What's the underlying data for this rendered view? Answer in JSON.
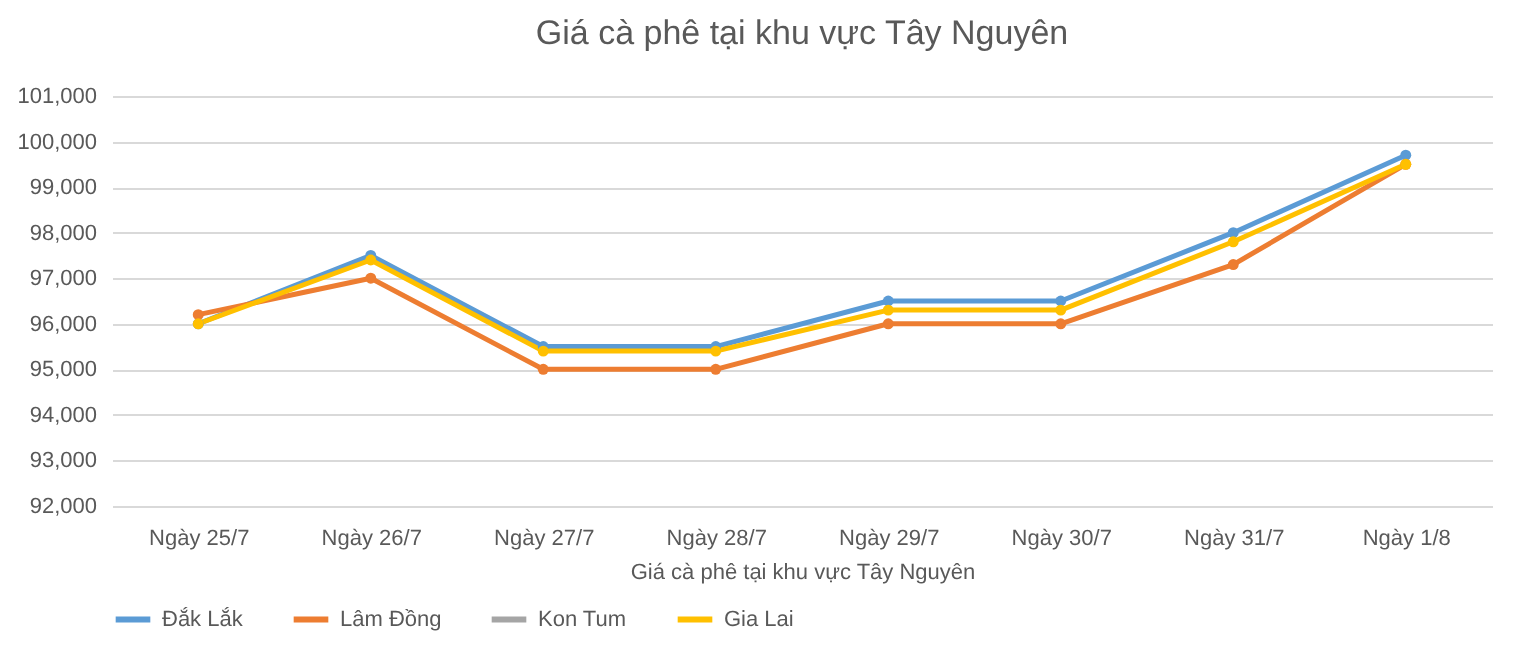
{
  "chart_data": {
    "type": "line",
    "title": "Giá cà phê tại khu vực Tây Nguyên",
    "xlabel": "Giá cà phê tại khu vực Tây Nguyên",
    "categories": [
      "Ngày 25/7",
      "Ngày 26/7",
      "Ngày 27/7",
      "Ngày 28/7",
      "Ngày 29/7",
      "Ngày 30/7",
      "Ngày 31/7",
      "Ngày 1/8"
    ],
    "series": [
      {
        "name": "Đắk Lắk",
        "color": "#5b9bd5",
        "values": [
          96000,
          97500,
          95500,
          95500,
          96500,
          96500,
          98000,
          99700
        ]
      },
      {
        "name": "Lâm Đồng",
        "color": "#ed7d31",
        "values": [
          96200,
          97000,
          95000,
          95000,
          96000,
          96000,
          97300,
          99500
        ]
      },
      {
        "name": "Kon Tum",
        "color": "#a5a5a5",
        "values": [
          null,
          null,
          null,
          null,
          null,
          null,
          null,
          null
        ]
      },
      {
        "name": "Gia Lai",
        "color": "#ffc000",
        "values": [
          96000,
          97400,
          95400,
          95400,
          96300,
          96300,
          97800,
          99500
        ]
      }
    ],
    "ylim": [
      92000,
      101000
    ],
    "yticks": [
      {
        "value": 92000,
        "label": "92,000"
      },
      {
        "value": 93000,
        "label": "93,000"
      },
      {
        "value": 94000,
        "label": "94,000"
      },
      {
        "value": 95000,
        "label": "95,000"
      },
      {
        "value": 96000,
        "label": "96,000"
      },
      {
        "value": 97000,
        "label": "97,000"
      },
      {
        "value": 98000,
        "label": "98,000"
      },
      {
        "value": 99000,
        "label": "99,000"
      },
      {
        "value": 100000,
        "label": "100,000"
      },
      {
        "value": 101000,
        "label": "101,000"
      }
    ],
    "grid": "y",
    "legend": "bottom",
    "marker": "circle",
    "line_style": "solid"
  }
}
